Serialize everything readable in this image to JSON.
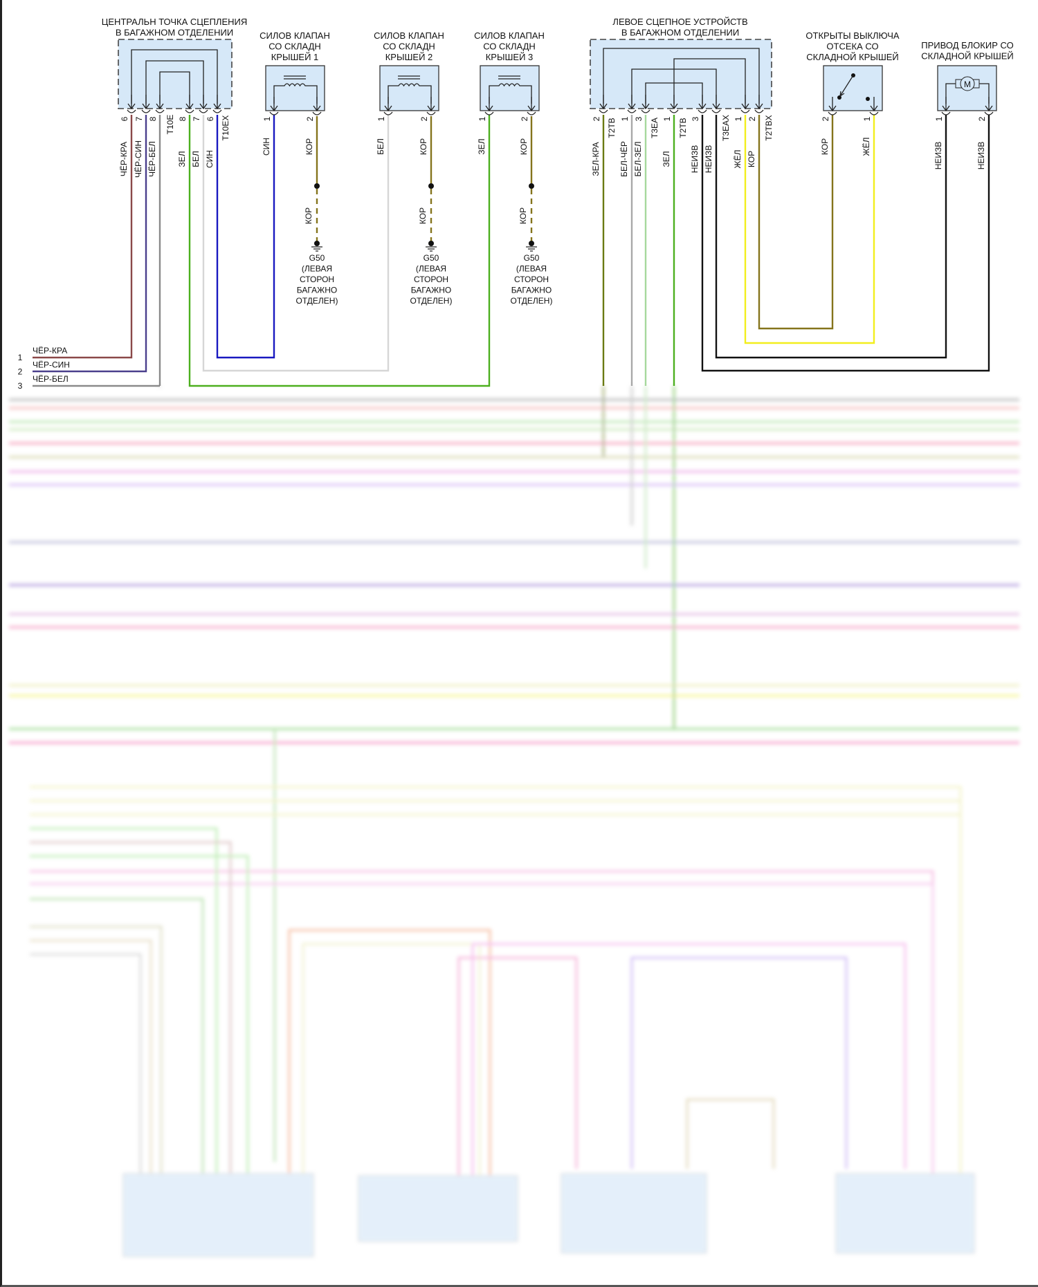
{
  "central_coupling": {
    "title": [
      "ЦЕНТРАЛЬН ТОЧКА СЦЕПЛЕНИЯ",
      "В БАГАЖНОМ ОТДЕЛЕНИИ"
    ],
    "connectors": [
      "T10E",
      "T10EX"
    ],
    "pins": [
      {
        "number": "6",
        "wire": "ЧЁР-КРА"
      },
      {
        "number": "7",
        "wire": "ЧЁР-СИН"
      },
      {
        "number": "8",
        "wire": "ЧЁР-БЕЛ"
      },
      {
        "number": "8",
        "wire": "ЗЕЛ"
      },
      {
        "number": "7",
        "wire": "БЕЛ"
      },
      {
        "number": "6",
        "wire": "СИН"
      }
    ]
  },
  "solenoids": [
    {
      "title": [
        "СИЛОВ КЛАПАН",
        "СО СКЛАДН",
        "КРЫШЕЙ 1"
      ],
      "pins": [
        {
          "number": "1",
          "wire": "СИН"
        },
        {
          "number": "2",
          "wire": "КОР"
        }
      ],
      "ground_wire": "КОР",
      "ground": [
        "G50",
        "(ЛЕВАЯ",
        "СТОРОН",
        "БАГАЖНО",
        "ОТДЕЛЕН)"
      ]
    },
    {
      "title": [
        "СИЛОВ КЛАПАН",
        "СО СКЛАДН",
        "КРЫШЕЙ 2"
      ],
      "pins": [
        {
          "number": "1",
          "wire": "БЕЛ"
        },
        {
          "number": "2",
          "wire": "КОР"
        }
      ],
      "ground_wire": "КОР",
      "ground": [
        "G50",
        "(ЛЕВАЯ",
        "СТОРОН",
        "БАГАЖНО",
        "ОТДЕЛЕН)"
      ]
    },
    {
      "title": [
        "СИЛОВ КЛАПАН",
        "СО СКЛАДН",
        "КРЫШЕЙ 3"
      ],
      "pins": [
        {
          "number": "1",
          "wire": "ЗЕЛ"
        },
        {
          "number": "2",
          "wire": "КОР"
        }
      ],
      "ground_wire": "КОР",
      "ground": [
        "G50",
        "(ЛЕВАЯ",
        "СТОРОН",
        "БАГАЖНО",
        "ОТДЕЛЕН)"
      ]
    }
  ],
  "left_coupling": {
    "title": [
      "ЛЕВОЕ СЦЕПНОЕ УСТРОЙСТВ",
      "В БАГАЖНОМ ОТДЕЛЕНИИ"
    ],
    "connectors": [
      "T2TB",
      "T3EA",
      "T2TB",
      "T3EAX",
      "T2TBX"
    ],
    "pins": [
      {
        "number": "2",
        "wire": "ЗЕЛ-КРА"
      },
      {
        "number": "1",
        "wire": "БЕЛ-ЧЁР"
      },
      {
        "number": "3",
        "wire": "БЕЛ-ЗЕЛ"
      },
      {
        "number": "1",
        "wire": "ЗЕЛ"
      },
      {
        "number": "3",
        "wire": "НЕИЗВ"
      },
      {
        "number": "",
        "wire": "НЕИЗВ"
      },
      {
        "number": "1",
        "wire": "ЖЁЛ"
      },
      {
        "number": "2",
        "wire": "КОР"
      }
    ]
  },
  "switch": {
    "title": [
      "ОТКРЫТЫ ВЫКЛЮЧА",
      "ОТСЕКА СО",
      "СКЛАДНОЙ КРЫШЕЙ"
    ],
    "pins": [
      {
        "number": "2",
        "wire": "КОР"
      },
      {
        "number": "1",
        "wire": "ЖЁЛ"
      }
    ]
  },
  "actuator": {
    "title": [
      "ПРИВОД БЛОКИР СО",
      "СКЛАДНОЙ КРЫШЕЙ"
    ],
    "motor_label": "M",
    "pins": [
      {
        "number": "1",
        "wire": "НЕИЗВ"
      },
      {
        "number": "2",
        "wire": "НЕИЗВ"
      }
    ]
  },
  "left_legend": [
    {
      "number": "1",
      "wire": "ЧЁР-КРА"
    },
    {
      "number": "2",
      "wire": "ЧЁР-СИН"
    },
    {
      "number": "3",
      "wire": "ЧЁР-БЕЛ"
    }
  ],
  "wire_colors": {
    "ЧЁР-КРА": "#8a4848",
    "ЧЁР-СИН": "#4a3f8c",
    "ЧЁР-БЕЛ": "#8a8a8a",
    "ЗЕЛ": "#4caf1e",
    "БЕЛ": "#d6d6d6",
    "СИН": "#1818c0",
    "КОР": "#85741c",
    "ЗЕЛ-КРА": "#6a7a12",
    "БЕЛ-ЧЁР": "#a8a8a8",
    "БЕЛ-ЗЕЛ": "#a6d89c",
    "НЕИЗВ": "#111111",
    "ЖЁЛ": "#f2ee1c"
  }
}
